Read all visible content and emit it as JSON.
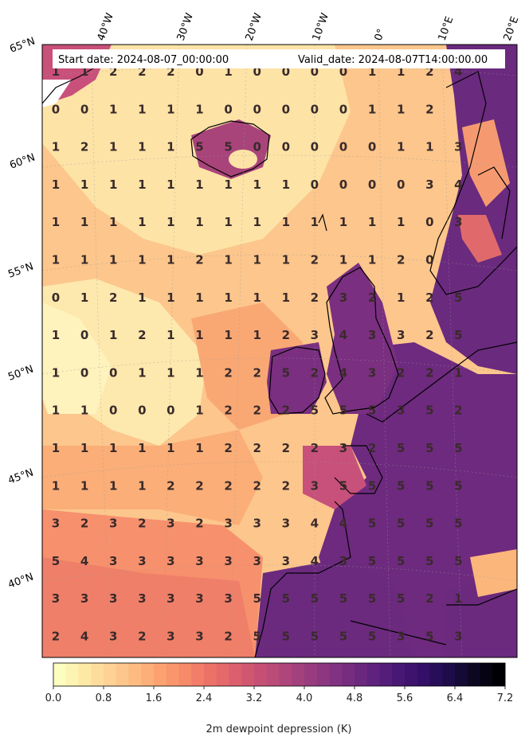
{
  "header": {
    "start_date": "Start date: 2024-08-07_00:00:00",
    "valid_date": "Valid_date: 2024-08-07T14:00:00.00"
  },
  "map": {
    "lon_labels": [
      "40°W",
      "30°W",
      "20°W",
      "10°W",
      "0°",
      "10°E",
      "20°E"
    ],
    "lat_labels": [
      "65°N",
      "60°N",
      "55°N",
      "50°N",
      "45°N",
      "40°N"
    ],
    "grid_values": [
      [
        1,
        1,
        2,
        2,
        2,
        0,
        1,
        0,
        0,
        0,
        0,
        1,
        1,
        2,
        4
      ],
      [
        0,
        0,
        1,
        1,
        1,
        1,
        0,
        0,
        0,
        0,
        0,
        1,
        1,
        2,
        null
      ],
      [
        1,
        2,
        1,
        1,
        1,
        5,
        5,
        0,
        0,
        0,
        0,
        0,
        1,
        1,
        3
      ],
      [
        1,
        1,
        1,
        1,
        1,
        1,
        1,
        1,
        1,
        0,
        0,
        0,
        0,
        3,
        4
      ],
      [
        1,
        1,
        1,
        1,
        1,
        1,
        1,
        1,
        1,
        1,
        1,
        1,
        1,
        0,
        3
      ],
      [
        1,
        1,
        1,
        1,
        1,
        2,
        1,
        1,
        1,
        2,
        1,
        1,
        2,
        0,
        null
      ],
      [
        0,
        1,
        2,
        1,
        1,
        1,
        1,
        1,
        1,
        2,
        3,
        2,
        1,
        2,
        5
      ],
      [
        1,
        0,
        1,
        2,
        1,
        1,
        1,
        1,
        2,
        3,
        4,
        3,
        3,
        2,
        5
      ],
      [
        1,
        0,
        0,
        1,
        1,
        1,
        2,
        2,
        5,
        2,
        4,
        3,
        2,
        2,
        1
      ],
      [
        1,
        1,
        0,
        0,
        0,
        1,
        2,
        2,
        2,
        5,
        5,
        5,
        3,
        5,
        2
      ],
      [
        1,
        1,
        1,
        1,
        1,
        1,
        2,
        2,
        2,
        2,
        3,
        2,
        5,
        5,
        5
      ],
      [
        1,
        1,
        1,
        1,
        2,
        2,
        2,
        2,
        2,
        3,
        5,
        5,
        5,
        5,
        5
      ],
      [
        3,
        2,
        3,
        2,
        3,
        2,
        3,
        3,
        3,
        4,
        4,
        5,
        5,
        5,
        5
      ],
      [
        5,
        4,
        3,
        3,
        3,
        3,
        3,
        3,
        3,
        4,
        3,
        5,
        5,
        5,
        5
      ],
      [
        3,
        3,
        3,
        3,
        3,
        3,
        3,
        5,
        5,
        5,
        5,
        5,
        5,
        2,
        1
      ],
      [
        2,
        4,
        3,
        2,
        3,
        3,
        2,
        5,
        5,
        5,
        5,
        5,
        3,
        5,
        3
      ]
    ]
  },
  "colorbar": {
    "tick_labels": [
      "0.0",
      "0.8",
      "1.6",
      "2.4",
      "3.2",
      "4.0",
      "4.8",
      "5.6",
      "6.4",
      "7.2"
    ],
    "title": "2m dewpoint depression (K)",
    "colors": [
      "#fcfdbf",
      "#fde9a5",
      "#fed395",
      "#fdbd84",
      "#fca572",
      "#f88d69",
      "#ef7567",
      "#e0626b",
      "#cb5373",
      "#b5487a",
      "#9e3f7e",
      "#883581",
      "#722b80",
      "#5c217c",
      "#461773",
      "#310e66",
      "#1d0c48",
      "#0c0820",
      "#000004"
    ]
  }
}
